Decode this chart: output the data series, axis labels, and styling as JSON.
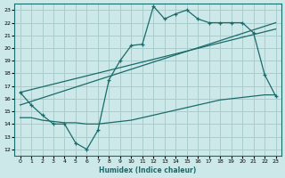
{
  "xlabel": "Humidex (Indice chaleur)",
  "bg_color": "#cce8e8",
  "grid_color": "#aacccc",
  "line_color": "#1a6b6b",
  "xlim": [
    -0.5,
    23.5
  ],
  "ylim": [
    11.5,
    23.5
  ],
  "xticks": [
    0,
    1,
    2,
    3,
    4,
    5,
    6,
    7,
    8,
    9,
    10,
    11,
    12,
    13,
    14,
    15,
    16,
    17,
    18,
    19,
    20,
    21,
    22,
    23
  ],
  "yticks": [
    12,
    13,
    14,
    15,
    16,
    17,
    18,
    19,
    20,
    21,
    22,
    23
  ],
  "wavy_x": [
    0,
    1,
    2,
    3,
    4,
    5,
    6,
    7,
    8,
    9,
    10,
    11,
    12,
    13,
    14,
    15,
    16,
    17,
    18,
    19,
    20,
    21,
    22,
    23
  ],
  "wavy_y": [
    16.5,
    15.5,
    14.7,
    14.0,
    14.0,
    12.5,
    12.0,
    13.5,
    17.5,
    19.0,
    20.2,
    20.3,
    23.3,
    22.3,
    22.7,
    23.0,
    22.3,
    22.0,
    22.0,
    22.0,
    22.0,
    21.2,
    17.9,
    16.2
  ],
  "trend1_x": [
    0,
    23
  ],
  "trend1_y": [
    15.5,
    22.0
  ],
  "trend2_x": [
    0,
    23
  ],
  "trend2_y": [
    16.5,
    21.5
  ],
  "flat_x": [
    0,
    1,
    2,
    3,
    4,
    5,
    6,
    7,
    8,
    9,
    10,
    11,
    12,
    13,
    14,
    15,
    16,
    17,
    18,
    19,
    20,
    21,
    22,
    23
  ],
  "flat_y": [
    14.5,
    14.5,
    14.3,
    14.2,
    14.1,
    14.1,
    14.0,
    14.0,
    14.1,
    14.2,
    14.3,
    14.5,
    14.7,
    14.9,
    15.1,
    15.3,
    15.5,
    15.7,
    15.9,
    16.0,
    16.1,
    16.2,
    16.3,
    16.3
  ]
}
